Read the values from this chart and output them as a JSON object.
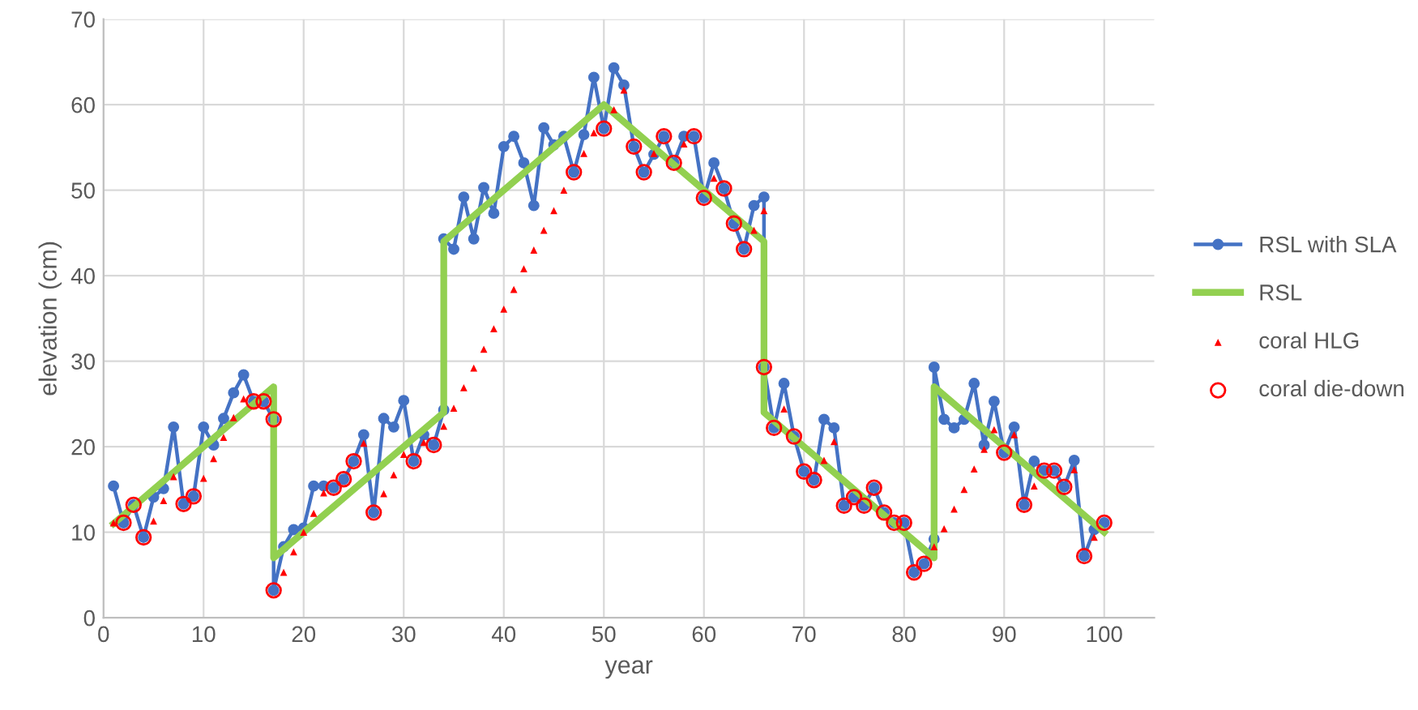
{
  "chart_data": {
    "type": "line",
    "xlabel": "year",
    "ylabel": "elevation (cm)",
    "xlim": [
      0,
      105
    ],
    "xticks": [
      0,
      10,
      20,
      30,
      40,
      50,
      60,
      70,
      80,
      90,
      100
    ],
    "ylim": [
      0,
      70
    ],
    "yticks": [
      0,
      10,
      20,
      30,
      40,
      50,
      60,
      70
    ],
    "grid": true,
    "legend": "right",
    "series": [
      {
        "name": "RSL with SLA",
        "color": "#4472c4",
        "marker": "circle",
        "x": [
          1,
          2,
          3,
          4,
          5,
          6,
          7,
          8,
          9,
          10,
          11,
          12,
          13,
          14,
          15,
          16,
          17,
          17,
          18,
          19,
          20,
          21,
          22,
          23,
          24,
          25,
          26,
          27,
          28,
          29,
          30,
          31,
          32,
          33,
          34,
          34,
          35,
          36,
          37,
          38,
          39,
          40,
          41,
          42,
          43,
          44,
          45,
          46,
          47,
          48,
          49,
          50,
          51,
          52,
          53,
          54,
          55,
          56,
          57,
          58,
          59,
          60,
          61,
          62,
          63,
          64,
          65,
          66,
          66,
          67,
          68,
          69,
          70,
          71,
          72,
          73,
          74,
          75,
          76,
          77,
          78,
          79,
          80,
          81,
          82,
          83,
          83,
          84,
          85,
          86,
          87,
          88,
          89,
          90,
          91,
          92,
          93,
          94,
          95,
          96,
          97,
          98,
          99,
          100
        ],
        "values": [
          15.4,
          11.1,
          13.2,
          9.4,
          14.1,
          15.1,
          22.3,
          13.3,
          14.2,
          22.3,
          20.2,
          23.3,
          26.3,
          28.4,
          25.3,
          25.3,
          23.2,
          3.2,
          8.3,
          10.3,
          10.5,
          15.4,
          15.4,
          15.2,
          16.2,
          18.3,
          21.4,
          12.3,
          23.3,
          22.3,
          25.4,
          18.3,
          21.4,
          20.2,
          24.3,
          44.3,
          43.1,
          49.2,
          44.3,
          50.3,
          47.3,
          55.1,
          56.3,
          53.2,
          48.2,
          57.3,
          55.3,
          56.3,
          52.1,
          56.5,
          63.2,
          57.2,
          64.3,
          62.3,
          55.1,
          52.1,
          54.2,
          56.3,
          53.2,
          56.3,
          56.3,
          49.1,
          53.2,
          50.2,
          46.1,
          43.1,
          48.2,
          49.2,
          29.3,
          22.2,
          27.4,
          21.2,
          17.1,
          16.1,
          23.2,
          22.2,
          13.1,
          14.1,
          13.1,
          15.2,
          12.3,
          11.1,
          11.1,
          5.3,
          6.3,
          9.2,
          29.3,
          23.2,
          22.2,
          23.2,
          27.4,
          20.2,
          25.3,
          19.3,
          22.3,
          13.2,
          18.3,
          17.2,
          17.2,
          15.3,
          18.4,
          7.2,
          10.3,
          11.1
        ]
      },
      {
        "name": "RSL",
        "color": "#92d050",
        "marker": "none",
        "x": [
          1,
          17,
          17,
          34,
          34,
          50,
          66,
          66,
          83,
          83,
          100
        ],
        "values": [
          11,
          27,
          7,
          24,
          44,
          60,
          44,
          24,
          7,
          27,
          10
        ]
      },
      {
        "name": "coral HLG",
        "type": "scatter",
        "color": "#ff0000",
        "marker": "triangle",
        "x": [
          1,
          5,
          6,
          7,
          10,
          11,
          12,
          13,
          14,
          18,
          19,
          20,
          21,
          22,
          26,
          28,
          29,
          30,
          32,
          34,
          35,
          36,
          37,
          38,
          39,
          40,
          41,
          42,
          43,
          44,
          45,
          46,
          48,
          49,
          51,
          52,
          55,
          58,
          61,
          65,
          66,
          68,
          72,
          73,
          83,
          84,
          85,
          86,
          87,
          88,
          89,
          91,
          93,
          97,
          99
        ],
        "values": [
          11.1,
          11.3,
          13.7,
          16.5,
          16.3,
          18.6,
          21.1,
          23.4,
          25.6,
          5.3,
          7.7,
          10,
          12.2,
          14.6,
          20.4,
          14.5,
          16.7,
          19.1,
          20.5,
          22.4,
          24.5,
          26.9,
          29.2,
          31.4,
          33.8,
          36.1,
          38.4,
          40.8,
          43,
          45.3,
          47.6,
          50,
          54.3,
          56.7,
          59.4,
          61.7,
          54.3,
          55.4,
          51.4,
          45.3,
          47.6,
          24.4,
          18.4,
          20.6,
          8.3,
          10.4,
          12.7,
          15,
          17.4,
          19.7,
          22,
          21.4,
          15.4,
          17.3,
          9.4
        ]
      },
      {
        "name": "coral die-down",
        "type": "scatter",
        "color": "#ff0000",
        "marker": "circle",
        "x": [
          2,
          3,
          4,
          8,
          9,
          15,
          16,
          17,
          17,
          23,
          24,
          25,
          27,
          31,
          33,
          47,
          50,
          53,
          54,
          56,
          57,
          59,
          60,
          62,
          63,
          64,
          66,
          67,
          69,
          70,
          71,
          74,
          75,
          76,
          77,
          78,
          79,
          80,
          81,
          82,
          90,
          92,
          94,
          95,
          96,
          98,
          100
        ],
        "values": [
          11.1,
          13.2,
          9.4,
          13.3,
          14.2,
          25.3,
          25.3,
          23.2,
          3.2,
          15.2,
          16.2,
          18.3,
          12.3,
          18.3,
          20.2,
          52.1,
          57.2,
          55.1,
          52.1,
          56.3,
          53.2,
          56.3,
          49.1,
          50.2,
          46.1,
          43.1,
          29.3,
          22.2,
          21.2,
          17.1,
          16.1,
          13.1,
          14.1,
          13.1,
          15.2,
          12.3,
          11.1,
          11.1,
          5.3,
          6.3,
          19.3,
          13.2,
          17.2,
          17.2,
          15.3,
          7.2,
          11.1
        ]
      }
    ]
  }
}
